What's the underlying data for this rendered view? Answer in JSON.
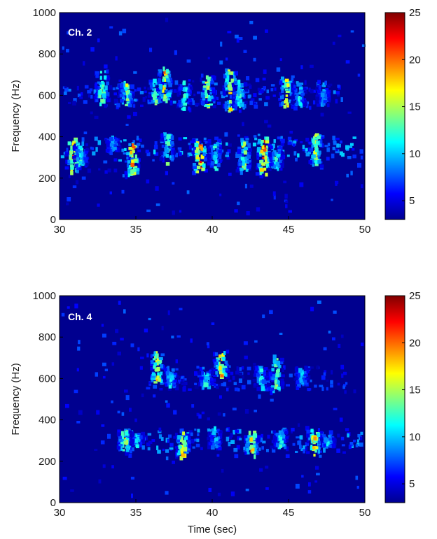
{
  "colormap": [
    "#00008f",
    "#0000ff",
    "#0080ff",
    "#00ffff",
    "#80ff80",
    "#ffff00",
    "#ff8000",
    "#ff0000",
    "#800000"
  ],
  "chart_data": [
    {
      "type": "heatmap",
      "label": "Ch. 2",
      "xlabel": "",
      "ylabel": "Frequency (Hz)",
      "xlim": [
        30,
        50
      ],
      "ylim": [
        0,
        1000
      ],
      "xticks": [
        "30",
        "35",
        "40",
        "45",
        "50"
      ],
      "yticks": [
        "0",
        "200",
        "400",
        "600",
        "800",
        "1000"
      ],
      "colorbar": {
        "range": [
          3,
          25
        ],
        "ticks": [
          "5",
          "10",
          "15",
          "20",
          "25"
        ]
      },
      "grid": false,
      "calls": [
        {
          "t": 30.9,
          "f_low": 230,
          "f_high": 380,
          "peak": 22
        },
        {
          "t": 31.4,
          "f_low": 250,
          "f_high": 360,
          "peak": 14
        },
        {
          "t": 32.8,
          "f_low": 560,
          "f_high": 720,
          "peak": 18
        },
        {
          "t": 33.5,
          "f_low": 330,
          "f_high": 380,
          "peak": 12
        },
        {
          "t": 34.4,
          "f_low": 560,
          "f_high": 660,
          "peak": 17
        },
        {
          "t": 34.8,
          "f_low": 210,
          "f_high": 360,
          "peak": 23
        },
        {
          "t": 36.3,
          "f_low": 560,
          "f_high": 680,
          "peak": 16
        },
        {
          "t": 36.9,
          "f_low": 560,
          "f_high": 720,
          "peak": 21
        },
        {
          "t": 37.1,
          "f_low": 280,
          "f_high": 420,
          "peak": 15
        },
        {
          "t": 38.2,
          "f_low": 540,
          "f_high": 660,
          "peak": 14
        },
        {
          "t": 39.2,
          "f_low": 220,
          "f_high": 380,
          "peak": 25
        },
        {
          "t": 39.7,
          "f_low": 550,
          "f_high": 700,
          "peak": 19
        },
        {
          "t": 40.2,
          "f_low": 250,
          "f_high": 370,
          "peak": 14
        },
        {
          "t": 41.2,
          "f_low": 520,
          "f_high": 720,
          "peak": 20
        },
        {
          "t": 41.8,
          "f_low": 540,
          "f_high": 660,
          "peak": 16
        },
        {
          "t": 42.1,
          "f_low": 230,
          "f_high": 380,
          "peak": 17
        },
        {
          "t": 43.4,
          "f_low": 210,
          "f_high": 400,
          "peak": 25
        },
        {
          "t": 44.2,
          "f_low": 250,
          "f_high": 340,
          "peak": 14
        },
        {
          "t": 44.9,
          "f_low": 540,
          "f_high": 680,
          "peak": 21
        },
        {
          "t": 45.7,
          "f_low": 540,
          "f_high": 660,
          "peak": 13
        },
        {
          "t": 46.8,
          "f_low": 260,
          "f_high": 400,
          "peak": 18
        },
        {
          "t": 47.3,
          "f_low": 560,
          "f_high": 660,
          "peak": 11
        }
      ],
      "harmonic_bands": [
        {
          "t_start": 30.2,
          "t_end": 49.8,
          "f": 340,
          "level": 10
        },
        {
          "t_start": 30.2,
          "t_end": 48.5,
          "f": 600,
          "level": 8
        }
      ]
    },
    {
      "type": "heatmap",
      "label": "Ch. 4",
      "xlabel": "Time (sec)",
      "ylabel": "Frequency (Hz)",
      "xlim": [
        30,
        50
      ],
      "ylim": [
        0,
        1000
      ],
      "xticks": [
        "30",
        "35",
        "40",
        "45",
        "50"
      ],
      "yticks": [
        "0",
        "200",
        "400",
        "600",
        "800",
        "1000"
      ],
      "colorbar": {
        "range": [
          3,
          25
        ],
        "ticks": [
          "5",
          "10",
          "15",
          "20",
          "25"
        ]
      },
      "grid": false,
      "calls": [
        {
          "t": 34.3,
          "f_low": 260,
          "f_high": 340,
          "peak": 19
        },
        {
          "t": 35.1,
          "f_low": 280,
          "f_high": 330,
          "peak": 12
        },
        {
          "t": 36.4,
          "f_low": 580,
          "f_high": 720,
          "peak": 20
        },
        {
          "t": 37.3,
          "f_low": 560,
          "f_high": 640,
          "peak": 13
        },
        {
          "t": 38.1,
          "f_low": 230,
          "f_high": 320,
          "peak": 21
        },
        {
          "t": 39.6,
          "f_low": 560,
          "f_high": 640,
          "peak": 14
        },
        {
          "t": 40.6,
          "f_low": 600,
          "f_high": 720,
          "peak": 22
        },
        {
          "t": 40.2,
          "f_low": 270,
          "f_high": 360,
          "peak": 12
        },
        {
          "t": 42.6,
          "f_low": 230,
          "f_high": 340,
          "peak": 21
        },
        {
          "t": 43.2,
          "f_low": 560,
          "f_high": 660,
          "peak": 13
        },
        {
          "t": 44.2,
          "f_low": 540,
          "f_high": 700,
          "peak": 16
        },
        {
          "t": 44.5,
          "f_low": 260,
          "f_high": 340,
          "peak": 14
        },
        {
          "t": 45.9,
          "f_low": 560,
          "f_high": 640,
          "peak": 12
        },
        {
          "t": 46.7,
          "f_low": 240,
          "f_high": 340,
          "peak": 22
        },
        {
          "t": 47.6,
          "f_low": 280,
          "f_high": 320,
          "peak": 13
        }
      ],
      "harmonic_bands": [
        {
          "t_start": 33.8,
          "t_end": 49.8,
          "f": 300,
          "level": 9
        },
        {
          "t_start": 35.8,
          "t_end": 48.8,
          "f": 600,
          "level": 7
        }
      ]
    }
  ]
}
